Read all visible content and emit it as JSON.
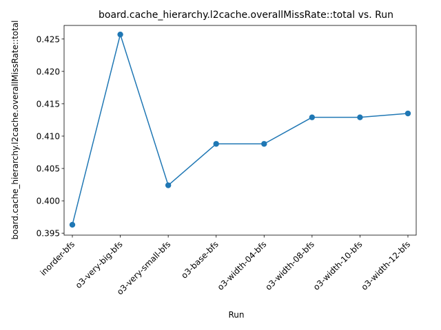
{
  "chart_data": {
    "type": "line",
    "title": "board.cache_hierarchy.l2cache.overallMissRate::total vs. Run",
    "xlabel": "Run",
    "ylabel": "board.cache_hierarchy.l2cache.overallMissRate::total",
    "categories": [
      "inorder-bfs",
      "o3-very-big-bfs",
      "o3-very-small-bfs",
      "o3-base-bfs",
      "o3-width-04-bfs",
      "o3-width-08-bfs",
      "o3-width-10-bfs",
      "o3-width-12-bfs"
    ],
    "series": [
      {
        "values": [
          0.3963,
          0.4257,
          0.4024,
          0.4088,
          0.4088,
          0.4129,
          0.4129,
          0.4135
        ],
        "color": "#1f77b4",
        "marker": "circle"
      }
    ],
    "ylim": [
      0.3947,
      0.4271
    ],
    "yticks": [
      "0.395",
      "0.400",
      "0.405",
      "0.410",
      "0.415",
      "0.420",
      "0.425"
    ],
    "grid": false,
    "legend": "none"
  }
}
